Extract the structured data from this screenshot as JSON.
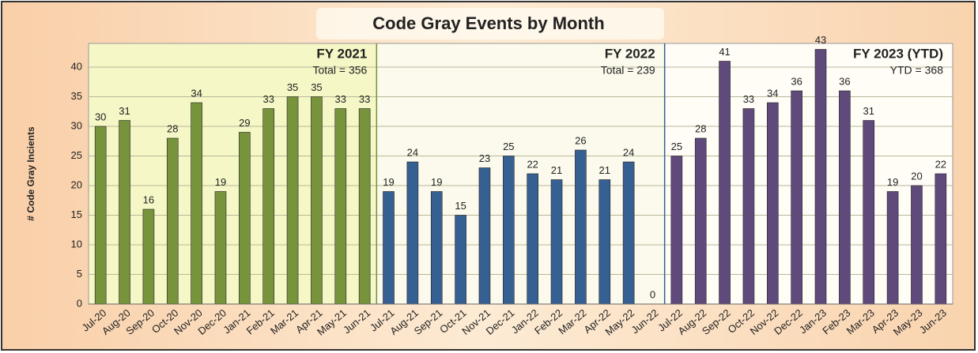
{
  "chart_data": {
    "type": "bar",
    "title": "Code Gray Events by Month",
    "y_label": "# Code Gray Incients",
    "ylim": [
      0,
      44
    ],
    "yticks": [
      0,
      5,
      10,
      15,
      20,
      25,
      30,
      35,
      40
    ],
    "grid": true,
    "groups": [
      {
        "label": "FY 2021",
        "note": "Total = 356",
        "color": "#77933c",
        "categories": [
          "Jul-20",
          "Aug-20",
          "Sep-20",
          "Oct-20",
          "Nov-20",
          "Dec-20",
          "Jan-21",
          "Feb-21",
          "Mar-21",
          "Apr-21",
          "May-21",
          "Jun-21"
        ],
        "values": [
          30,
          31,
          16,
          28,
          34,
          19,
          29,
          33,
          35,
          35,
          33,
          33
        ]
      },
      {
        "label": "FY 2022",
        "note": "Total = 239",
        "color": "#376092",
        "categories": [
          "Jul-21",
          "Aug-21",
          "Sep-21",
          "Oct-21",
          "Nov-21",
          "Dec-21",
          "Jan-22",
          "Feb-22",
          "Mar-22",
          "Apr-22",
          "May-22",
          "Jun-22"
        ],
        "values": [
          19,
          24,
          19,
          15,
          23,
          25,
          22,
          21,
          26,
          21,
          24,
          0
        ]
      },
      {
        "label": "FY 2023 (YTD)",
        "note": "YTD = 368",
        "color": "#604a7b",
        "categories": [
          "Jul-22",
          "Aug-22",
          "Sep-22",
          "Oct-22",
          "Nov-22",
          "Dec-22",
          "Jan-23",
          "Feb-23",
          "Mar-23",
          "Apr-23",
          "May-23",
          "Jun-23"
        ],
        "values": [
          25,
          28,
          41,
          33,
          34,
          36,
          43,
          36,
          31,
          19,
          20,
          22
        ]
      }
    ]
  }
}
